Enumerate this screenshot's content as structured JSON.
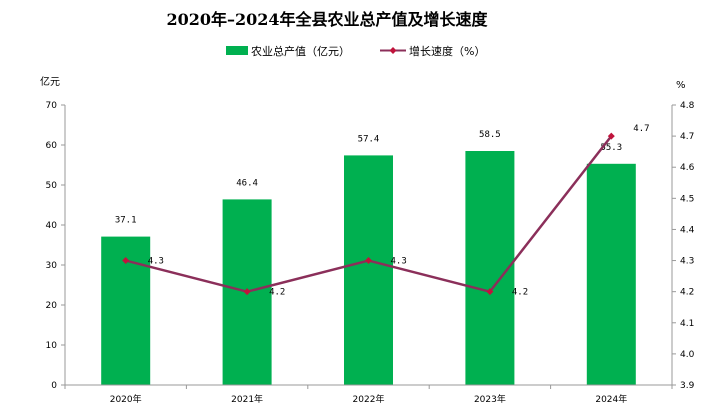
{
  "chart_data": {
    "type": "bar",
    "title": "2020年–2024年全县农业总产值及增长速度",
    "categories": [
      "2020年",
      "2021年",
      "2022年",
      "2023年",
      "2024年"
    ],
    "series": [
      {
        "name": "农业总产值（亿元）",
        "type": "bar",
        "axis": "left",
        "color": "#00b050",
        "values": [
          37.1,
          46.4,
          57.4,
          58.5,
          55.3
        ],
        "labels": [
          "37.1",
          "46.4",
          "57.4",
          "58.5",
          "55.3"
        ]
      },
      {
        "name": "增长速度（%）",
        "type": "line",
        "axis": "right",
        "color": "#8b2f5a",
        "marker_color": "#c0143c",
        "values": [
          4.3,
          4.2,
          4.3,
          4.2,
          4.7
        ],
        "labels": [
          "4.3",
          "4.2",
          "4.3",
          "4.2",
          "4.7"
        ]
      }
    ],
    "y_left": {
      "unit": "亿元",
      "ylim": [
        0,
        70
      ],
      "ticks": [
        0,
        10,
        20,
        30,
        40,
        50,
        60,
        70
      ],
      "tick_labels": [
        "0",
        "10",
        "20",
        "30",
        "40",
        "50",
        "60",
        "70"
      ]
    },
    "y_right": {
      "unit": "%",
      "ylim": [
        3.9,
        4.8
      ],
      "ticks": [
        3.9,
        4.0,
        4.1,
        4.2,
        4.3,
        4.4,
        4.5,
        4.6,
        4.7,
        4.8
      ],
      "tick_labels": [
        "3.9",
        "4.0",
        "4.1",
        "4.2",
        "4.3",
        "4.4",
        "4.5",
        "4.6",
        "4.7",
        "4.8"
      ]
    },
    "grid": false,
    "legend_position": "top-center"
  }
}
